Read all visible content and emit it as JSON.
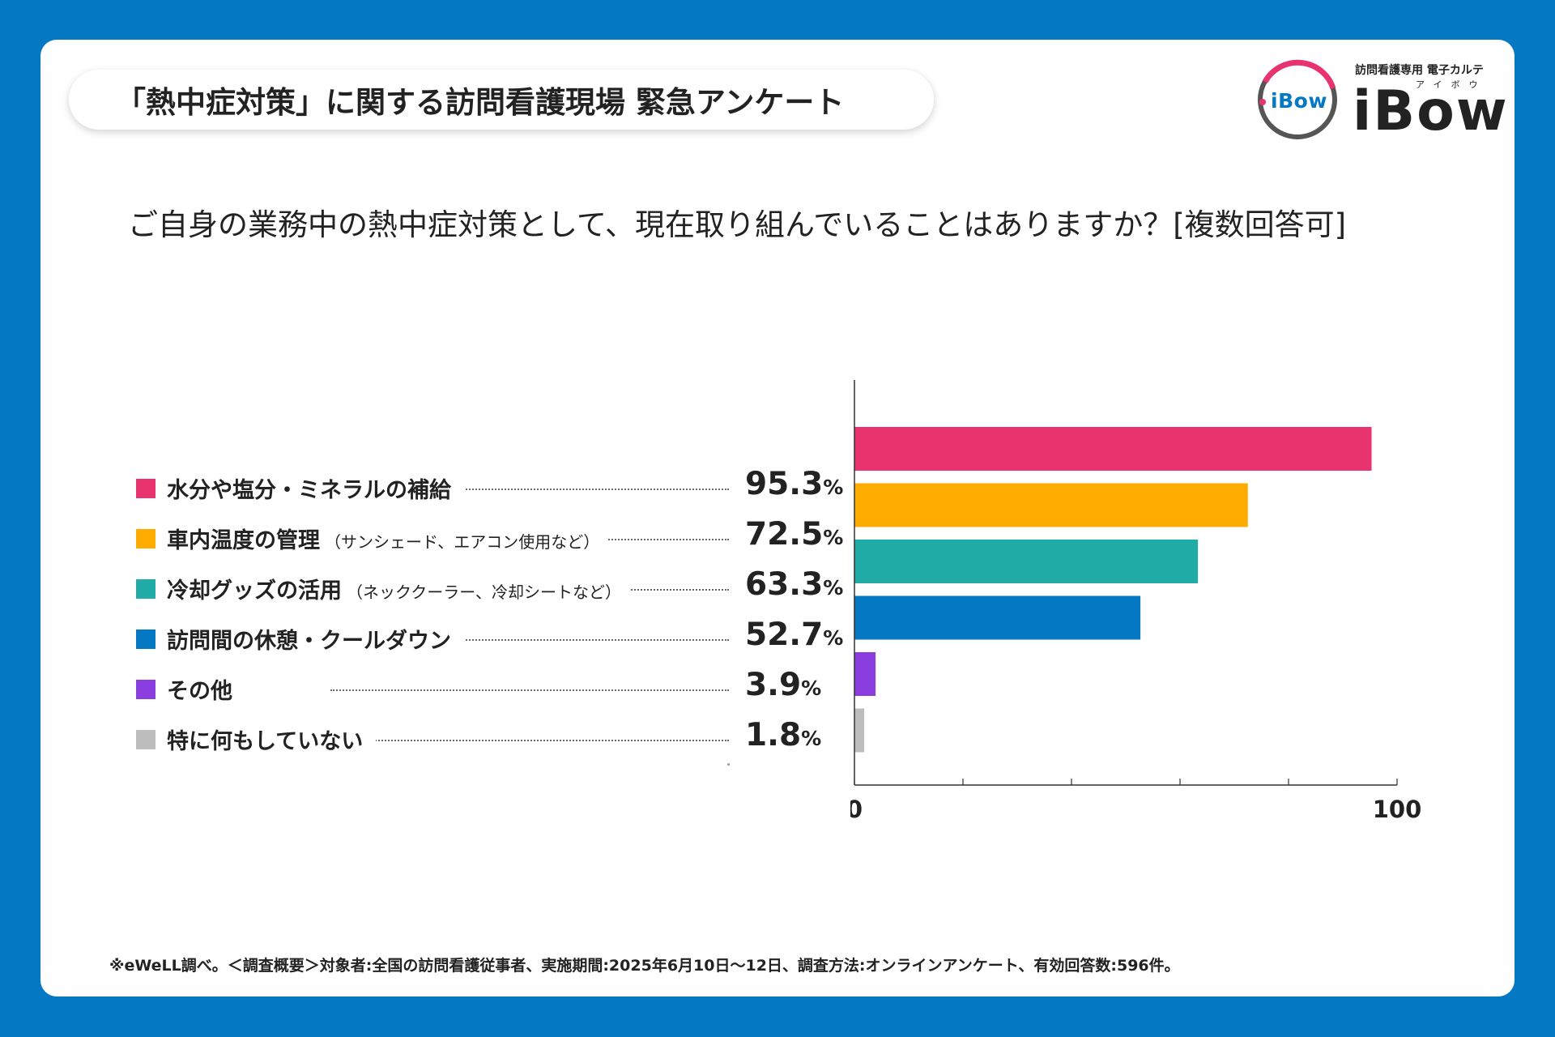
{
  "header": {
    "title": "「熱中症対策」に関する訪問看護現場 緊急アンケート"
  },
  "logo": {
    "mark_text": "iBow",
    "caption": "訪問看護専用 電子カルテ",
    "kana": "アイボウ",
    "wordmark": "iBow",
    "colors": {
      "ring_pink": "#e8336f",
      "ring_gray": "#555555",
      "blue": "#0578c4"
    }
  },
  "question": "ご自身の業務中の熱中症対策として、現在取り組んでいることはありますか？[複数回答可]",
  "legend": [
    {
      "label": "水分や塩分・ミネラルの補給",
      "sub": "",
      "value": "95.3",
      "pct": "%",
      "color": "#e8336f"
    },
    {
      "label": "車内温度の管理",
      "sub": "（サンシェード、エアコン使用など）",
      "value": "72.5",
      "pct": "%",
      "color": "#ffab00"
    },
    {
      "label": "冷却グッズの活用",
      "sub": "（ネッククーラー、冷却シートなど）",
      "value": "63.3",
      "pct": "%",
      "color": "#21aca8"
    },
    {
      "label": "訪問間の休憩・クールダウン",
      "sub": "",
      "value": "52.7",
      "pct": "%",
      "color": "#0578c4"
    },
    {
      "label": "その他",
      "sub": "",
      "value": "3.9",
      "pct": "%",
      "color": "#8a3ee0"
    },
    {
      "label": "特に何もしていない",
      "sub": "",
      "value": "1.8",
      "pct": "%",
      "color": "#bdbdbd"
    }
  ],
  "chart_data": {
    "type": "bar",
    "orientation": "horizontal",
    "categories": [
      "水分や塩分・ミネラルの補給",
      "車内温度の管理",
      "冷却グッズの活用",
      "訪問間の休憩・クールダウン",
      "その他",
      "特に何もしていない"
    ],
    "values": [
      95.3,
      72.5,
      63.3,
      52.7,
      3.9,
      1.8
    ],
    "colors": [
      "#e8336f",
      "#ffab00",
      "#21aca8",
      "#0578c4",
      "#8a3ee0",
      "#bdbdbd"
    ],
    "xlim": [
      0,
      100
    ],
    "tick_labels": [
      "0",
      "100"
    ],
    "minor_ticks": [
      20,
      40,
      60,
      80
    ],
    "unit": "%"
  },
  "footnote": "※eWeLL調べ。＜調査概要＞対象者:全国の訪問看護従事者、実施期間:2025年6月10日〜12日、調査方法:オンラインアンケート、有効回答数:596件。"
}
